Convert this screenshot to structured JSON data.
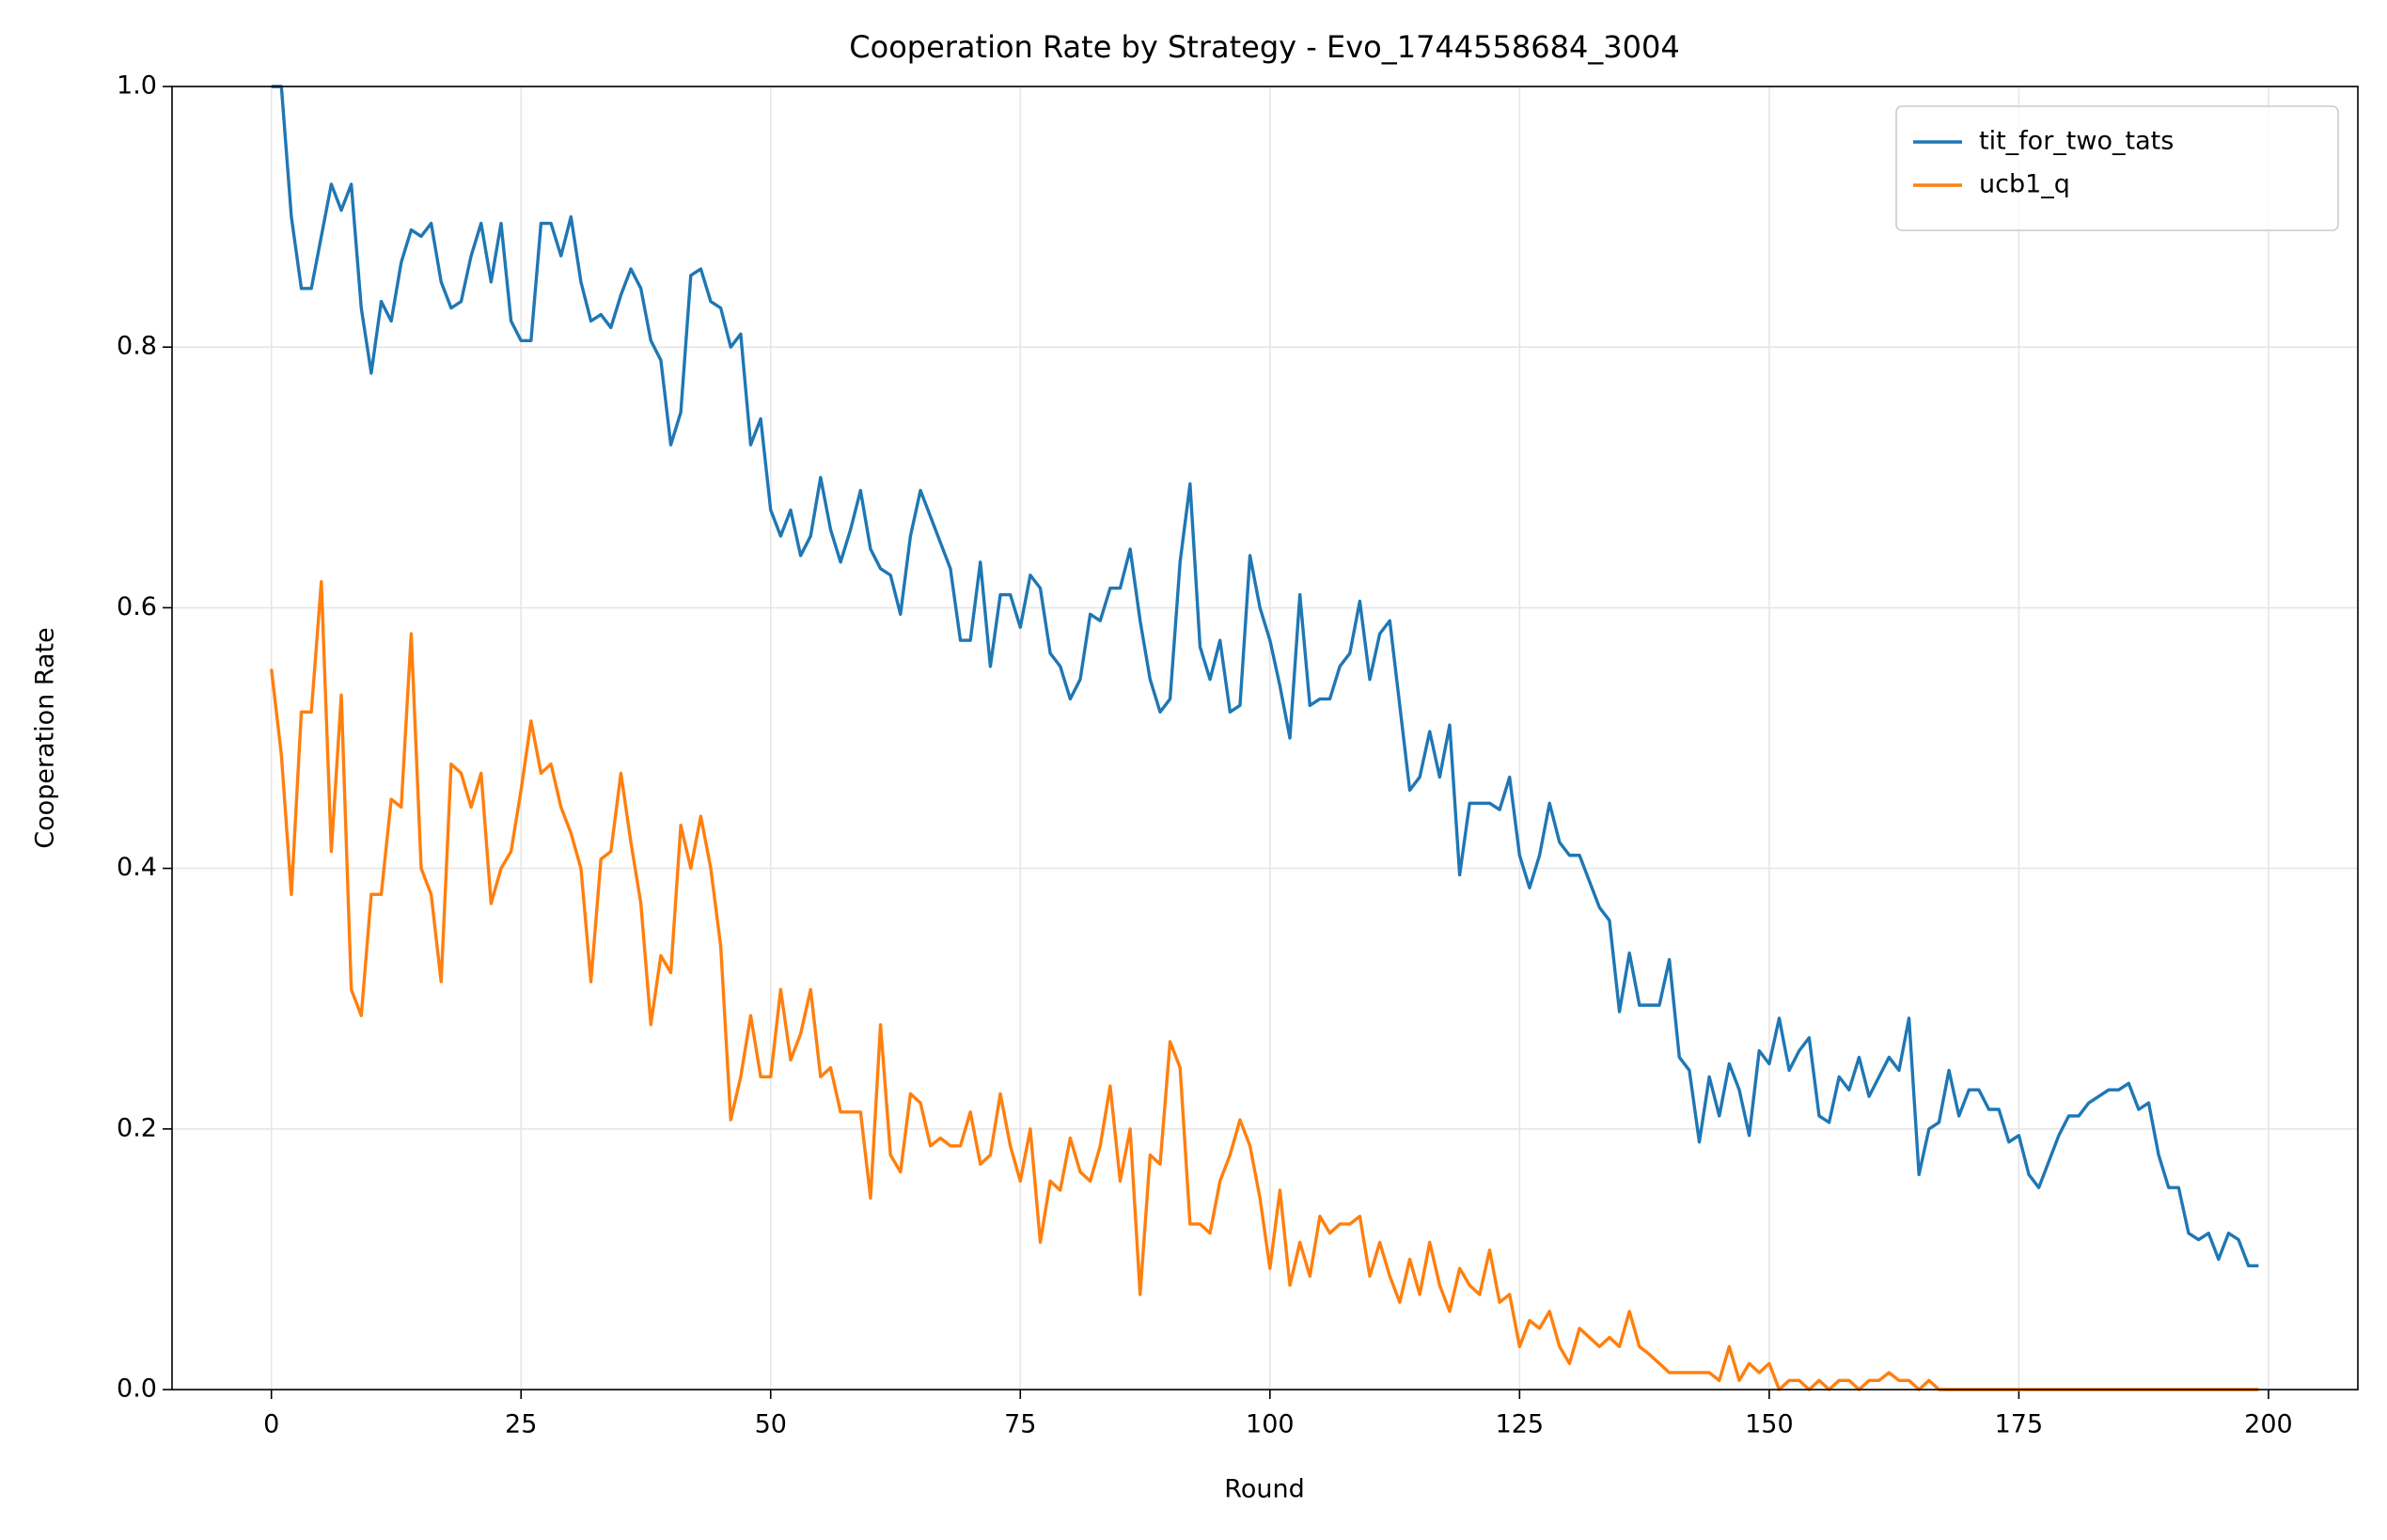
{
  "chart_data": {
    "type": "line",
    "title": "Cooperation Rate by Strategy - Evo_1744558684_3004",
    "xlabel": "Round",
    "ylabel": "Cooperation Rate",
    "x": [
      0,
      1,
      2,
      3,
      4,
      5,
      6,
      7,
      8,
      9,
      10,
      11,
      12,
      13,
      14,
      15,
      16,
      17,
      18,
      19,
      20,
      21,
      22,
      23,
      24,
      25,
      26,
      27,
      28,
      29,
      30,
      31,
      32,
      33,
      34,
      35,
      36,
      37,
      38,
      39,
      40,
      41,
      42,
      43,
      44,
      45,
      46,
      47,
      48,
      49,
      50,
      51,
      52,
      53,
      54,
      55,
      56,
      57,
      58,
      59,
      60,
      61,
      62,
      63,
      64,
      65,
      66,
      67,
      68,
      69,
      70,
      71,
      72,
      73,
      74,
      75,
      76,
      77,
      78,
      79,
      80,
      81,
      82,
      83,
      84,
      85,
      86,
      87,
      88,
      89,
      90,
      91,
      92,
      93,
      94,
      95,
      96,
      97,
      98,
      99,
      100,
      101,
      102,
      103,
      104,
      105,
      106,
      107,
      108,
      109,
      110,
      111,
      112,
      113,
      114,
      115,
      116,
      117,
      118,
      119,
      120,
      121,
      122,
      123,
      124,
      125,
      126,
      127,
      128,
      129,
      130,
      131,
      132,
      133,
      134,
      135,
      136,
      137,
      138,
      139,
      140,
      141,
      142,
      143,
      144,
      145,
      146,
      147,
      148,
      149,
      150,
      151,
      152,
      153,
      154,
      155,
      156,
      157,
      158,
      159,
      160,
      161,
      162,
      163,
      164,
      165,
      166,
      167,
      168,
      169,
      170,
      171,
      172,
      173,
      174,
      175,
      176,
      177,
      178,
      179,
      180,
      181,
      182,
      183,
      184,
      185,
      186,
      187,
      188,
      189,
      190,
      191,
      192,
      193,
      194,
      195,
      196,
      197,
      198,
      199
    ],
    "series": [
      {
        "name": "tit_for_two_tats",
        "color": "#1f77b4",
        "values": [
          1.0,
          1.0,
          0.9,
          0.845,
          0.845,
          0.885,
          0.925,
          0.905,
          0.925,
          0.83,
          0.78,
          0.835,
          0.82,
          0.865,
          0.89,
          0.885,
          0.895,
          0.85,
          0.83,
          0.835,
          0.87,
          0.895,
          0.85,
          0.895,
          0.82,
          0.805,
          0.805,
          0.895,
          0.895,
          0.87,
          0.9,
          0.85,
          0.82,
          0.825,
          0.815,
          0.84,
          0.86,
          0.845,
          0.805,
          0.79,
          0.725,
          0.75,
          0.855,
          0.86,
          0.835,
          0.83,
          0.8,
          0.81,
          0.725,
          0.745,
          0.675,
          0.655,
          0.675,
          0.64,
          0.655,
          0.7,
          0.66,
          0.635,
          0.66,
          0.69,
          0.645,
          0.63,
          0.625,
          0.595,
          0.655,
          0.69,
          0.67,
          0.65,
          0.63,
          0.575,
          0.575,
          0.635,
          0.555,
          0.61,
          0.61,
          0.585,
          0.625,
          0.615,
          0.565,
          0.555,
          0.53,
          0.545,
          0.595,
          0.59,
          0.615,
          0.615,
          0.645,
          0.59,
          0.545,
          0.52,
          0.53,
          0.635,
          0.695,
          0.57,
          0.545,
          0.575,
          0.52,
          0.525,
          0.64,
          0.6,
          0.575,
          0.54,
          0.5,
          0.61,
          0.525,
          0.53,
          0.53,
          0.555,
          0.565,
          0.605,
          0.545,
          0.58,
          0.59,
          0.525,
          0.46,
          0.47,
          0.505,
          0.47,
          0.51,
          0.395,
          0.45,
          0.45,
          0.45,
          0.445,
          0.47,
          0.41,
          0.385,
          0.41,
          0.45,
          0.42,
          0.41,
          0.41,
          0.39,
          0.37,
          0.36,
          0.29,
          0.335,
          0.295,
          0.295,
          0.295,
          0.33,
          0.255,
          0.245,
          0.19,
          0.24,
          0.21,
          0.25,
          0.23,
          0.195,
          0.26,
          0.25,
          0.285,
          0.245,
          0.26,
          0.27,
          0.21,
          0.205,
          0.24,
          0.23,
          0.255,
          0.225,
          0.24,
          0.255,
          0.245,
          0.285,
          0.165,
          0.2,
          0.205,
          0.245,
          0.21,
          0.23,
          0.23,
          0.215,
          0.215,
          0.19,
          0.195,
          0.165,
          0.155,
          0.175,
          0.195,
          0.21,
          0.21,
          0.22,
          0.225,
          0.23,
          0.23,
          0.235,
          0.215,
          0.22,
          0.18,
          0.155,
          0.155,
          0.12,
          0.115,
          0.12,
          0.1,
          0.12,
          0.115,
          0.095,
          0.095
        ]
      },
      {
        "name": "ucb1_q",
        "color": "#ff7f0e",
        "values": [
          0.553,
          0.487,
          0.38,
          0.52,
          0.52,
          0.62,
          0.413,
          0.533,
          0.307,
          0.287,
          0.38,
          0.38,
          0.453,
          0.447,
          0.58,
          0.4,
          0.38,
          0.313,
          0.48,
          0.473,
          0.447,
          0.473,
          0.373,
          0.4,
          0.413,
          0.46,
          0.513,
          0.473,
          0.48,
          0.447,
          0.427,
          0.4,
          0.313,
          0.407,
          0.413,
          0.473,
          0.42,
          0.373,
          0.28,
          0.333,
          0.32,
          0.433,
          0.4,
          0.44,
          0.4,
          0.34,
          0.207,
          0.24,
          0.287,
          0.24,
          0.24,
          0.307,
          0.253,
          0.273,
          0.307,
          0.24,
          0.247,
          0.213,
          0.213,
          0.213,
          0.147,
          0.28,
          0.18,
          0.167,
          0.227,
          0.22,
          0.187,
          0.193,
          0.187,
          0.187,
          0.213,
          0.173,
          0.18,
          0.227,
          0.187,
          0.16,
          0.2,
          0.113,
          0.16,
          0.153,
          0.193,
          0.167,
          0.16,
          0.187,
          0.233,
          0.16,
          0.2,
          0.073,
          0.18,
          0.173,
          0.267,
          0.247,
          0.127,
          0.127,
          0.12,
          0.16,
          0.18,
          0.207,
          0.187,
          0.147,
          0.093,
          0.153,
          0.08,
          0.113,
          0.087,
          0.133,
          0.12,
          0.127,
          0.127,
          0.133,
          0.087,
          0.113,
          0.087,
          0.067,
          0.1,
          0.073,
          0.113,
          0.08,
          0.06,
          0.093,
          0.08,
          0.073,
          0.107,
          0.067,
          0.073,
          0.033,
          0.053,
          0.047,
          0.06,
          0.033,
          0.02,
          0.047,
          0.04,
          0.033,
          0.04,
          0.033,
          0.06,
          0.033,
          0.027,
          0.02,
          0.013,
          0.013,
          0.013,
          0.013,
          0.013,
          0.007,
          0.033,
          0.007,
          0.02,
          0.013,
          0.02,
          0,
          0.007,
          0.007,
          0,
          0.007,
          0,
          0.007,
          0.007,
          0,
          0.007,
          0.007,
          0.013,
          0.007,
          0.007,
          0,
          0.007,
          0,
          0,
          0,
          0,
          0,
          0,
          0,
          0,
          0,
          0,
          0,
          0,
          0,
          0,
          0,
          0,
          0,
          0,
          0,
          0,
          0,
          0,
          0,
          0,
          0,
          0,
          0,
          0,
          0,
          0,
          0,
          0,
          0
        ]
      }
    ],
    "xlim": [
      -9.95,
      208.95
    ],
    "xticks": [
      0,
      25,
      50,
      75,
      100,
      125,
      150,
      175,
      200
    ],
    "ylim": [
      0,
      1
    ],
    "yticks": [
      {
        "value": 0,
        "label": "0.0"
      },
      {
        "value": 0.2,
        "label": "0.2"
      },
      {
        "value": 0.4,
        "label": "0.4"
      },
      {
        "value": 0.6,
        "label": "0.6"
      },
      {
        "value": 0.8,
        "label": "0.8"
      },
      {
        "value": 1,
        "label": "1.0"
      }
    ],
    "grid": true,
    "legend": "upper right"
  }
}
